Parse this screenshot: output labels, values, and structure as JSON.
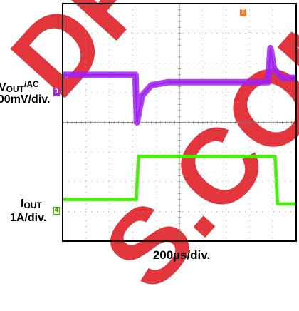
{
  "watermark": {
    "text_top": "DFOT",
    "text_bottom": "S.COM",
    "color": "#e0242c"
  },
  "chart_data": {
    "type": "line",
    "title": "",
    "xlabel": "200µs/div.",
    "x_divisions": 10,
    "y_divisions": 8,
    "grid": true,
    "trigger_marker": "T",
    "series": [
      {
        "name": "VOUT/AC",
        "channel": "3",
        "color": "#a020f0",
        "scale": "100mV/div.",
        "x": [
          0,
          3.12,
          3.18,
          3.4,
          3.8,
          4.5,
          8.8,
          8.9,
          9.05,
          9.4,
          10
        ],
        "y": [
          5.6,
          5.6,
          4.0,
          4.9,
          5.25,
          5.35,
          5.35,
          6.5,
          5.8,
          5.5,
          5.5
        ]
      },
      {
        "name": "IOUT",
        "channel": "4",
        "color": "#40f000",
        "scale": "1A/div.",
        "x": [
          0,
          3.15,
          3.25,
          10,
          9.1,
          9.2,
          10
        ],
        "y": [
          1.4,
          1.4,
          2.85,
          2.85,
          2.85,
          1.25,
          1.25
        ]
      }
    ],
    "channel_labels": {
      "vout_main": "V",
      "vout_sub": "OUT",
      "vout_sup": "/AC",
      "vout_scale": "100mV/div.",
      "iout_main": "I",
      "iout_sub": "OUT",
      "iout_scale": "1A/div."
    }
  }
}
